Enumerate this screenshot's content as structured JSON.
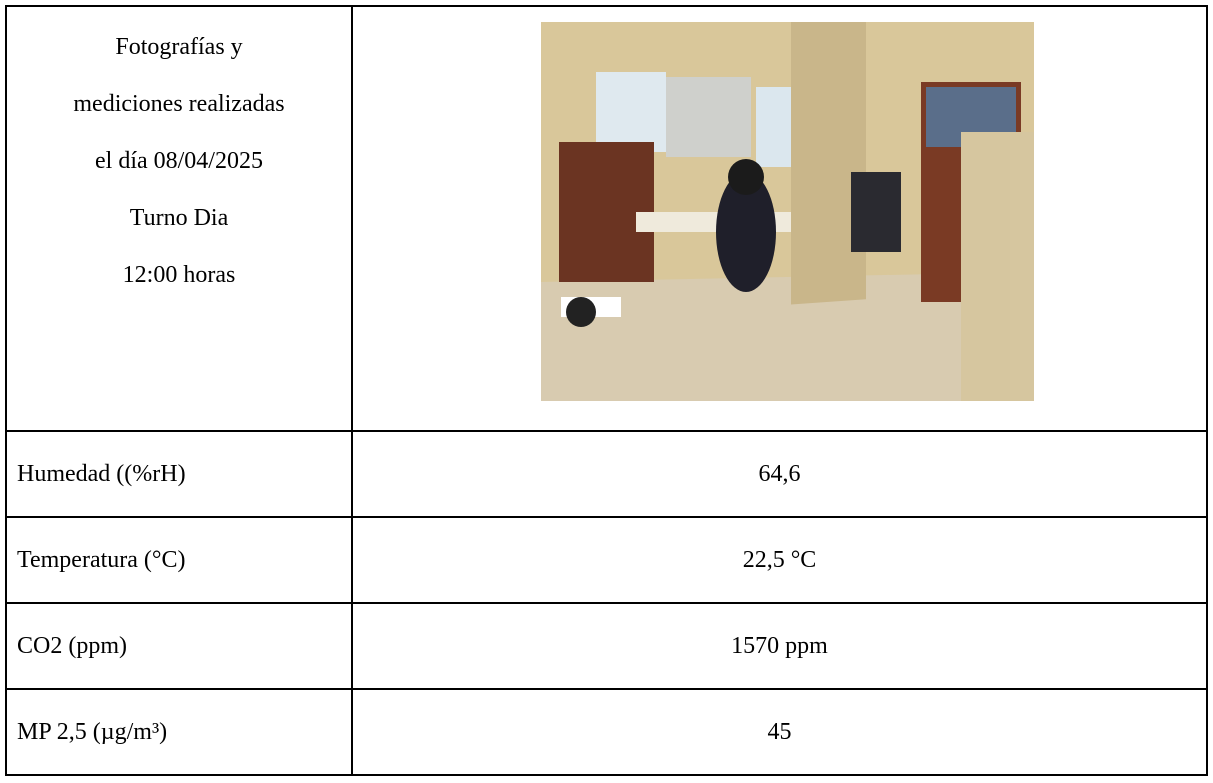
{
  "header_cell": {
    "lines": [
      "Fotografías y",
      "mediciones realizadas",
      "el día 08/04/2025",
      "Turno Dia",
      "12:00 horas"
    ]
  },
  "table": {
    "rows": [
      [
        "Humedad ((%rH)",
        "64,6"
      ],
      [
        "Temperatura (°C)",
        "22,5 °C"
      ],
      [
        "CO2 (ppm)",
        "1570 ppm"
      ],
      [
        "MP 2,5 (µg/m³)",
        "45"
      ]
    ]
  }
}
